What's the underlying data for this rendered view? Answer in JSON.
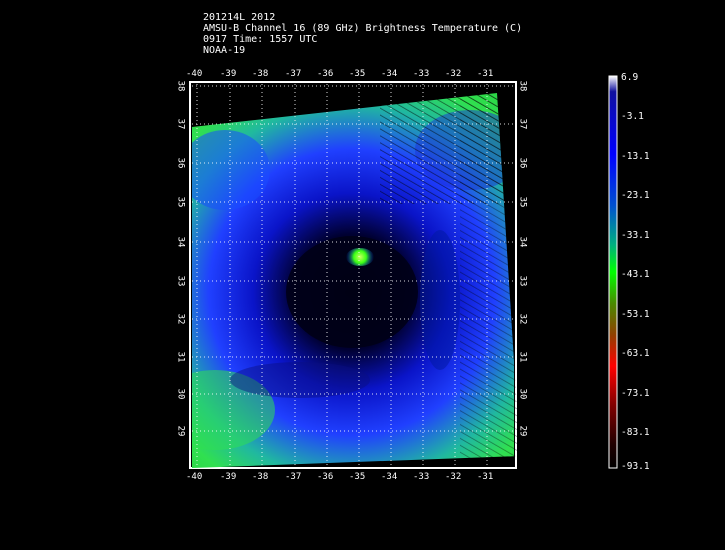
{
  "header": {
    "line1": "201214L 2012",
    "line2": "AMSU-B Channel 16 (89 GHz) Brightness Temperature (C)",
    "line3": "0917 Time: 1557 UTC",
    "line4": "NOAA-19"
  },
  "map": {
    "lon_labels": [
      "-40",
      "-39",
      "-38",
      "-37",
      "-36",
      "-35",
      "-34",
      "-33",
      "-32",
      "-31"
    ],
    "lat_labels": [
      "38",
      "37",
      "36",
      "35",
      "34",
      "33",
      "32",
      "31",
      "30",
      "29"
    ]
  },
  "colorbar": {
    "labels": [
      "6.9",
      "-3.1",
      "-13.1",
      "-23.1",
      "-33.1",
      "-43.1",
      "-53.1",
      "-63.1",
      "-73.1",
      "-83.1",
      "-93.1"
    ],
    "colors": [
      "#ffffff",
      "#0000a0",
      "#0000ff",
      "#0060c0",
      "#00c060",
      "#00ff00",
      "#508000",
      "#a02000",
      "#ff0000",
      "#600000",
      "#000000"
    ]
  },
  "image_colors": {
    "eye": "#39ff14",
    "eyewall": "#000040",
    "dark_core": "#000000",
    "band": "#1c3cff",
    "outer": "#32dc50"
  }
}
